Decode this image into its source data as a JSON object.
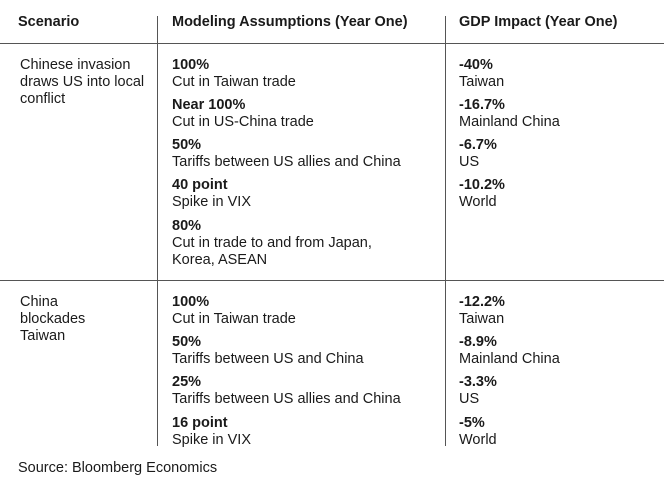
{
  "headers": {
    "scenario": "Scenario",
    "assumptions": "Modeling Assumptions (Year One)",
    "impact": "GDP Impact (Year One)"
  },
  "rows": [
    {
      "scenario": "Chinese invasion draws US into local conflict",
      "assumptions": [
        {
          "value": "100%",
          "label": "Cut in Taiwan trade"
        },
        {
          "value": "Near 100%",
          "label": "Cut in US-China trade"
        },
        {
          "value": "50%",
          "label": "Tariffs between US allies and China"
        },
        {
          "value": "40 point",
          "label": "Spike in VIX"
        },
        {
          "value": "80%",
          "label": "Cut in trade to and from Japan, Korea, ASEAN"
        }
      ],
      "impacts": [
        {
          "value": "-40%",
          "label": "Taiwan"
        },
        {
          "value": "-16.7%",
          "label": "Mainland China"
        },
        {
          "value": "-6.7%",
          "label": "US"
        },
        {
          "value": "-10.2%",
          "label": "World"
        }
      ]
    },
    {
      "scenario": "China blockades Taiwan",
      "assumptions": [
        {
          "value": "100%",
          "label": "Cut in Taiwan trade"
        },
        {
          "value": "50%",
          "label": "Tariffs between US and China"
        },
        {
          "value": "25%",
          "label": "Tariffs between US allies and China"
        },
        {
          "value": "16 point",
          "label": "Spike in VIX"
        }
      ],
      "impacts": [
        {
          "value": "-12.2%",
          "label": "Taiwan"
        },
        {
          "value": "-8.9%",
          "label": "Mainland China"
        },
        {
          "value": "-3.3%",
          "label": "US"
        },
        {
          "value": "-5%",
          "label": "World"
        }
      ]
    }
  ],
  "source": "Source: Bloomberg Economics"
}
